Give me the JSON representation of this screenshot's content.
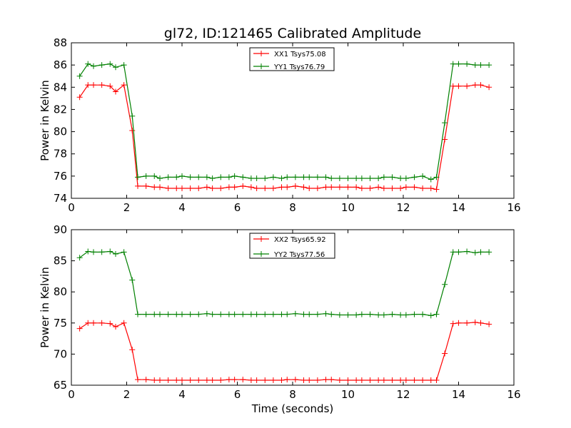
{
  "chart_data": [
    {
      "type": "line",
      "title": "gl72, ID:121465 Calibrated Amplitude",
      "xlabel": "",
      "ylabel": "Power in Kelvin",
      "xlim": [
        0,
        16
      ],
      "ylim": [
        74,
        88
      ],
      "xticks": [
        0,
        2,
        4,
        6,
        8,
        10,
        12,
        14,
        16
      ],
      "yticks": [
        74,
        76,
        78,
        80,
        82,
        84,
        86,
        88
      ],
      "legend_position": "top-center",
      "x": [
        0.3,
        0.6,
        0.8,
        1.1,
        1.4,
        1.6,
        1.9,
        2.2,
        2.4,
        2.7,
        3.0,
        3.2,
        3.5,
        3.8,
        4.0,
        4.3,
        4.6,
        4.9,
        5.1,
        5.4,
        5.7,
        5.9,
        6.2,
        6.5,
        6.7,
        7.0,
        7.3,
        7.6,
        7.8,
        8.1,
        8.4,
        8.6,
        8.9,
        9.2,
        9.4,
        9.7,
        10.0,
        10.3,
        10.5,
        10.8,
        11.1,
        11.3,
        11.6,
        11.9,
        12.1,
        12.4,
        12.7,
        13.0,
        13.2,
        13.5,
        13.8,
        14.0,
        14.3,
        14.6,
        14.8,
        15.1
      ],
      "series": [
        {
          "name": "XX1 Tsys75.08",
          "color": "#ff0000",
          "values": [
            83.1,
            84.2,
            84.2,
            84.2,
            84.1,
            83.6,
            84.2,
            80.1,
            75.1,
            75.1,
            75.0,
            75.0,
            74.9,
            74.9,
            74.9,
            74.9,
            74.9,
            75.0,
            74.9,
            74.9,
            75.0,
            75.0,
            75.1,
            75.0,
            74.9,
            74.9,
            74.9,
            75.0,
            75.0,
            75.1,
            75.0,
            74.9,
            74.9,
            75.0,
            75.0,
            75.0,
            75.0,
            75.0,
            74.9,
            74.9,
            75.0,
            74.9,
            74.9,
            74.9,
            75.0,
            75.0,
            74.9,
            74.9,
            74.8,
            79.3,
            84.1,
            84.1,
            84.1,
            84.2,
            84.2,
            84.0
          ]
        },
        {
          "name": "YY1 Tsys76.79",
          "color": "#008000",
          "values": [
            85.0,
            86.1,
            85.9,
            86.0,
            86.1,
            85.8,
            86.0,
            81.4,
            75.9,
            76.0,
            76.0,
            75.8,
            75.9,
            75.9,
            76.0,
            75.9,
            75.9,
            75.9,
            75.8,
            75.9,
            75.9,
            76.0,
            75.9,
            75.8,
            75.8,
            75.8,
            75.9,
            75.8,
            75.9,
            75.9,
            75.9,
            75.9,
            75.9,
            75.9,
            75.8,
            75.8,
            75.8,
            75.8,
            75.8,
            75.8,
            75.8,
            75.9,
            75.9,
            75.8,
            75.8,
            75.9,
            76.0,
            75.7,
            75.9,
            80.8,
            86.1,
            86.1,
            86.1,
            86.0,
            86.0,
            86.0
          ]
        }
      ]
    },
    {
      "type": "line",
      "title": "",
      "xlabel": "Time (seconds)",
      "ylabel": "Power in Kelvin",
      "xlim": [
        0,
        16
      ],
      "ylim": [
        65,
        90
      ],
      "xticks": [
        0,
        2,
        4,
        6,
        8,
        10,
        12,
        14,
        16
      ],
      "yticks": [
        65,
        70,
        75,
        80,
        85,
        90
      ],
      "legend_position": "top-center",
      "x": [
        0.3,
        0.6,
        0.8,
        1.1,
        1.4,
        1.6,
        1.9,
        2.2,
        2.4,
        2.7,
        3.0,
        3.2,
        3.5,
        3.8,
        4.0,
        4.3,
        4.6,
        4.9,
        5.1,
        5.4,
        5.7,
        5.9,
        6.2,
        6.5,
        6.7,
        7.0,
        7.3,
        7.6,
        7.8,
        8.1,
        8.4,
        8.6,
        8.9,
        9.2,
        9.4,
        9.7,
        10.0,
        10.3,
        10.5,
        10.8,
        11.1,
        11.3,
        11.6,
        11.9,
        12.1,
        12.4,
        12.7,
        13.0,
        13.2,
        13.5,
        13.8,
        14.0,
        14.3,
        14.6,
        14.8,
        15.1
      ],
      "series": [
        {
          "name": "XX2 Tsys65.92",
          "color": "#ff0000",
          "values": [
            74.1,
            75.0,
            75.0,
            75.0,
            74.9,
            74.4,
            75.0,
            70.7,
            65.9,
            65.9,
            65.8,
            65.8,
            65.8,
            65.8,
            65.8,
            65.8,
            65.8,
            65.8,
            65.8,
            65.8,
            65.9,
            65.9,
            65.9,
            65.8,
            65.8,
            65.8,
            65.8,
            65.8,
            65.9,
            65.9,
            65.8,
            65.8,
            65.8,
            65.9,
            65.9,
            65.8,
            65.8,
            65.8,
            65.8,
            65.8,
            65.8,
            65.8,
            65.8,
            65.8,
            65.8,
            65.8,
            65.8,
            65.8,
            65.8,
            70.1,
            74.9,
            75.0,
            75.0,
            75.1,
            75.0,
            74.8
          ]
        },
        {
          "name": "YY2 Tsys77.56",
          "color": "#008000",
          "values": [
            85.5,
            86.5,
            86.4,
            86.4,
            86.5,
            86.1,
            86.4,
            81.9,
            76.4,
            76.4,
            76.4,
            76.4,
            76.4,
            76.4,
            76.4,
            76.4,
            76.4,
            76.5,
            76.4,
            76.4,
            76.4,
            76.4,
            76.4,
            76.4,
            76.4,
            76.4,
            76.4,
            76.4,
            76.4,
            76.5,
            76.4,
            76.4,
            76.4,
            76.5,
            76.4,
            76.3,
            76.3,
            76.3,
            76.4,
            76.4,
            76.3,
            76.3,
            76.4,
            76.3,
            76.3,
            76.4,
            76.4,
            76.2,
            76.4,
            81.2,
            86.4,
            86.4,
            86.5,
            86.3,
            86.4,
            86.4
          ]
        }
      ]
    }
  ]
}
